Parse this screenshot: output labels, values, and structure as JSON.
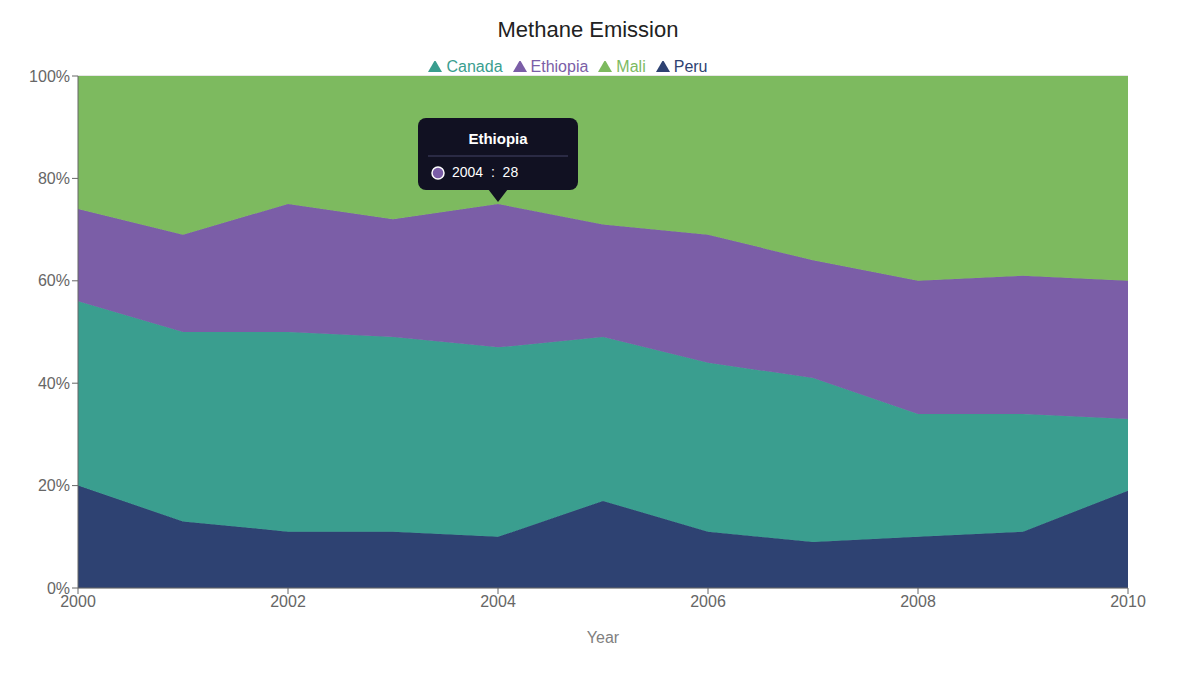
{
  "chart_data": {
    "type": "area",
    "title": "Methane Emission",
    "x_label": "Year",
    "x": [
      2000,
      2001,
      2002,
      2003,
      2004,
      2005,
      2006,
      2007,
      2008,
      2009,
      2010
    ],
    "series": [
      {
        "name": "Peru",
        "color": "#2e4272",
        "values": [
          20,
          13,
          11,
          11,
          10,
          17,
          11,
          9,
          10,
          11,
          19
        ]
      },
      {
        "name": "Canada",
        "color": "#3a9e8f",
        "values": [
          36,
          37,
          39,
          38,
          37,
          32,
          33,
          32,
          24,
          23,
          14
        ]
      },
      {
        "name": "Ethiopia",
        "color": "#7b5ea7",
        "values": [
          18,
          19,
          25,
          23,
          28,
          22,
          25,
          23,
          26,
          27,
          27
        ]
      },
      {
        "name": "Mali",
        "color": "#7dba5f",
        "values": [
          26,
          31,
          25,
          28,
          25,
          29,
          31,
          36,
          40,
          39,
          40
        ]
      }
    ],
    "stacked": true,
    "xlim": [
      2000,
      2010
    ],
    "xticks": [
      2000,
      2002,
      2004,
      2006,
      2008,
      2010
    ],
    "ylim": [
      0,
      100
    ],
    "yticks": [
      {
        "value": 0,
        "label": "0%"
      },
      {
        "value": 20,
        "label": "20%"
      },
      {
        "value": 40,
        "label": "40%"
      },
      {
        "value": 60,
        "label": "60%"
      },
      {
        "value": 80,
        "label": "80%"
      },
      {
        "value": 100,
        "label": "100%"
      }
    ],
    "grid": true,
    "legend": "top",
    "annotations": [
      {
        "series": "Ethiopia",
        "x": 2004,
        "title": "Ethiopia",
        "text": "2004  :  28"
      }
    ]
  }
}
